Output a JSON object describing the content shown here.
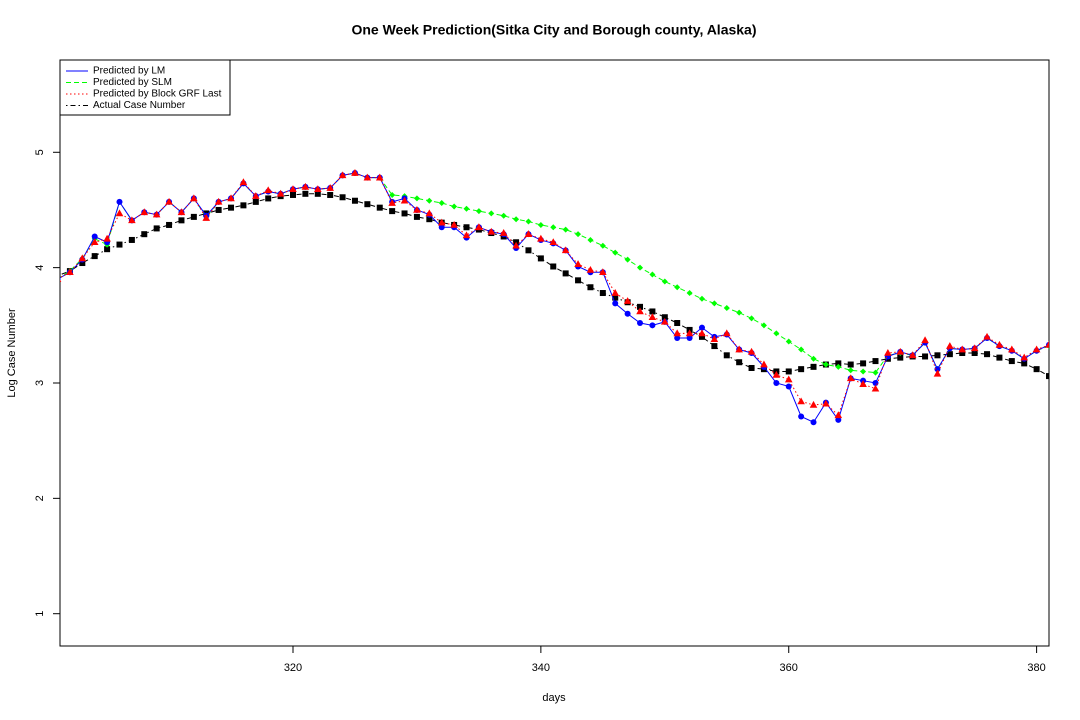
{
  "chart_data": {
    "type": "line",
    "title": "One Week Prediction(Sitka City and Borough county, Alaska)",
    "x_label": "days",
    "y_label": "Log Case Number",
    "x": [
      301,
      302,
      303,
      304,
      305,
      306,
      307,
      308,
      309,
      310,
      311,
      312,
      313,
      314,
      315,
      316,
      317,
      318,
      319,
      320,
      321,
      322,
      323,
      324,
      325,
      326,
      327,
      328,
      329,
      330,
      331,
      332,
      333,
      334,
      335,
      336,
      337,
      338,
      339,
      340,
      341,
      342,
      343,
      344,
      345,
      346,
      347,
      348,
      349,
      350,
      351,
      352,
      353,
      354,
      355,
      356,
      357,
      358,
      359,
      360,
      361,
      362,
      363,
      364,
      365,
      366,
      367,
      368,
      369,
      370,
      371,
      372,
      373,
      374,
      375,
      376,
      377,
      378,
      379,
      380,
      381
    ],
    "xlim": [
      301.2,
      381
    ],
    "xticks": [
      320,
      340,
      360,
      380
    ],
    "ylim": [
      0.72,
      5.8
    ],
    "yticks": [
      1,
      2,
      3,
      4,
      5
    ],
    "legend": "top-left",
    "series": [
      {
        "name": "Predicted by LM",
        "color": "#0000ff",
        "line_style": "solid",
        "marker": "circle",
        "values": [
          3.9,
          3.96,
          4.07,
          4.27,
          4.22,
          4.57,
          4.41,
          4.48,
          4.46,
          4.57,
          4.48,
          4.6,
          4.45,
          4.57,
          4.6,
          4.73,
          4.62,
          4.66,
          4.64,
          4.68,
          4.7,
          4.68,
          4.69,
          4.8,
          4.82,
          4.78,
          4.78,
          4.57,
          4.6,
          4.5,
          4.46,
          4.35,
          4.35,
          4.26,
          4.35,
          4.31,
          4.29,
          4.17,
          4.29,
          4.24,
          4.21,
          4.15,
          4.01,
          3.96,
          3.96,
          3.69,
          3.6,
          3.52,
          3.5,
          3.53,
          3.39,
          3.39,
          3.48,
          3.4,
          3.42,
          3.29,
          3.26,
          3.14,
          3.0,
          2.97,
          2.71,
          2.66,
          2.83,
          2.68,
          3.04,
          3.02,
          3.0,
          3.23,
          3.27,
          3.24,
          3.35,
          3.12,
          3.3,
          3.29,
          3.3,
          3.39,
          3.32,
          3.28,
          3.21,
          3.28,
          3.33
        ]
      },
      {
        "name": "Predicted by SLM",
        "color": "#00ff00",
        "line_style": "dashed",
        "marker": "diamond",
        "values": [
          3.9,
          3.97,
          4.08,
          4.25,
          4.2,
          4.57,
          4.41,
          4.48,
          4.46,
          4.57,
          4.48,
          4.6,
          4.44,
          4.57,
          4.6,
          4.73,
          4.62,
          4.66,
          4.64,
          4.68,
          4.7,
          4.68,
          4.69,
          4.8,
          4.82,
          4.78,
          4.78,
          4.63,
          4.62,
          4.6,
          4.58,
          4.56,
          4.53,
          4.51,
          4.49,
          4.47,
          4.45,
          4.42,
          4.4,
          4.37,
          4.35,
          4.33,
          4.29,
          4.24,
          4.19,
          4.13,
          4.07,
          4.0,
          3.94,
          3.88,
          3.83,
          3.78,
          3.73,
          3.69,
          3.65,
          3.61,
          3.56,
          3.5,
          3.43,
          3.36,
          3.29,
          3.21,
          3.16,
          3.14,
          3.11,
          3.1,
          3.09,
          3.24,
          3.26,
          3.24,
          3.35,
          3.12,
          3.3,
          3.29,
          3.3,
          3.39,
          3.32,
          3.28,
          3.21,
          3.28,
          3.32
        ]
      },
      {
        "name": "Predicted by Block GRF Last",
        "color": "#ff0000",
        "line_style": "dotted",
        "marker": "triangle",
        "values": [
          3.9,
          3.96,
          4.08,
          4.22,
          4.25,
          4.47,
          4.41,
          4.48,
          4.46,
          4.57,
          4.48,
          4.6,
          4.43,
          4.57,
          4.6,
          4.74,
          4.62,
          4.67,
          4.64,
          4.68,
          4.7,
          4.68,
          4.69,
          4.8,
          4.82,
          4.78,
          4.78,
          4.56,
          4.58,
          4.5,
          4.47,
          4.39,
          4.37,
          4.28,
          4.35,
          4.31,
          4.3,
          4.19,
          4.29,
          4.25,
          4.22,
          4.15,
          4.03,
          3.98,
          3.96,
          3.78,
          3.71,
          3.62,
          3.57,
          3.53,
          3.43,
          3.43,
          3.43,
          3.38,
          3.43,
          3.29,
          3.27,
          3.16,
          3.07,
          3.03,
          2.84,
          2.81,
          2.82,
          2.72,
          3.04,
          2.99,
          2.95,
          3.26,
          3.27,
          3.24,
          3.37,
          3.08,
          3.32,
          3.29,
          3.3,
          3.4,
          3.33,
          3.29,
          3.22,
          3.29,
          3.33
        ]
      },
      {
        "name": "Actual Case Number",
        "color": "#000000",
        "line_style": "dotdash",
        "marker": "square",
        "values": [
          3.93,
          3.97,
          4.04,
          4.1,
          4.16,
          4.2,
          4.24,
          4.29,
          4.34,
          4.37,
          4.41,
          4.44,
          4.47,
          4.5,
          4.52,
          4.54,
          4.57,
          4.6,
          4.62,
          4.63,
          4.64,
          4.64,
          4.63,
          4.61,
          4.58,
          4.55,
          4.52,
          4.49,
          4.47,
          4.44,
          4.42,
          4.39,
          4.37,
          4.35,
          4.33,
          4.3,
          4.27,
          4.22,
          4.15,
          4.08,
          4.01,
          3.95,
          3.89,
          3.83,
          3.78,
          3.74,
          3.7,
          3.66,
          3.62,
          3.57,
          3.52,
          3.46,
          3.4,
          3.32,
          3.24,
          3.18,
          3.13,
          3.12,
          3.1,
          3.1,
          3.12,
          3.14,
          3.16,
          3.17,
          3.16,
          3.17,
          3.19,
          3.21,
          3.22,
          3.23,
          3.23,
          3.24,
          3.25,
          3.26,
          3.26,
          3.25,
          3.22,
          3.19,
          3.17,
          3.12,
          3.06
        ]
      }
    ]
  }
}
